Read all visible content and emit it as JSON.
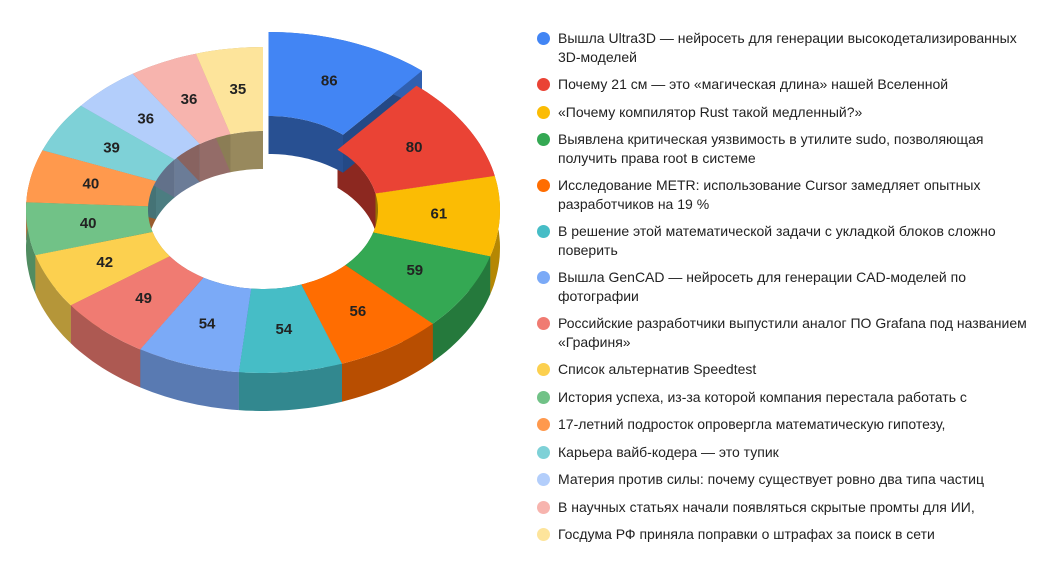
{
  "chart_data": {
    "type": "pie",
    "donut": true,
    "three_d": true,
    "legend": "right",
    "categories": [
      "Вышла Ultra3D — нейросеть для генерации высокодетализированных 3D-моделей",
      "Почему 21 см — это «магическая длина» нашей Вселенной",
      "«Почему компилятор Rust такой медленный?»",
      "Выявлена критическая уязвимость в утилите sudo, позволяющая получить права root в системе",
      "Исследование METR: использование Cursor замедляет опытных разработчиков на 19 %",
      "В решение этой математической задачи с укладкой блоков сложно поверить",
      "Вышла GenCAD — нейросеть для генерации CAD-моделей по фотографии",
      "Российские разработчики выпустили аналог ПО Grafana под названием «Графиня»",
      "Список альтернатив Speedtest",
      "История успеха, из-за которой компания перестала работать с",
      "17-летний подросток опровергла математическую гипотезу,",
      "Карьера вайб-кодера — это тупик",
      "Материя против силы: почему существует ровно два типа частиц",
      "В научных статьях начали появляться скрытые промты для ИИ,",
      "Госдума РФ приняла поправки о штрафах за поиск в сети"
    ],
    "values": [
      86,
      80,
      61,
      59,
      56,
      54,
      54,
      49,
      42,
      40,
      40,
      39,
      36,
      36,
      35
    ],
    "colors": [
      "#4285f4",
      "#ea4335",
      "#fbbc04",
      "#34a853",
      "#ff6d01",
      "#46bdc6",
      "#7baaf7",
      "#f07b72",
      "#fcd04f",
      "#71c287",
      "#ff994d",
      "#7ed1d7",
      "#b3cefb",
      "#f7b4ae",
      "#fde49b"
    ]
  }
}
